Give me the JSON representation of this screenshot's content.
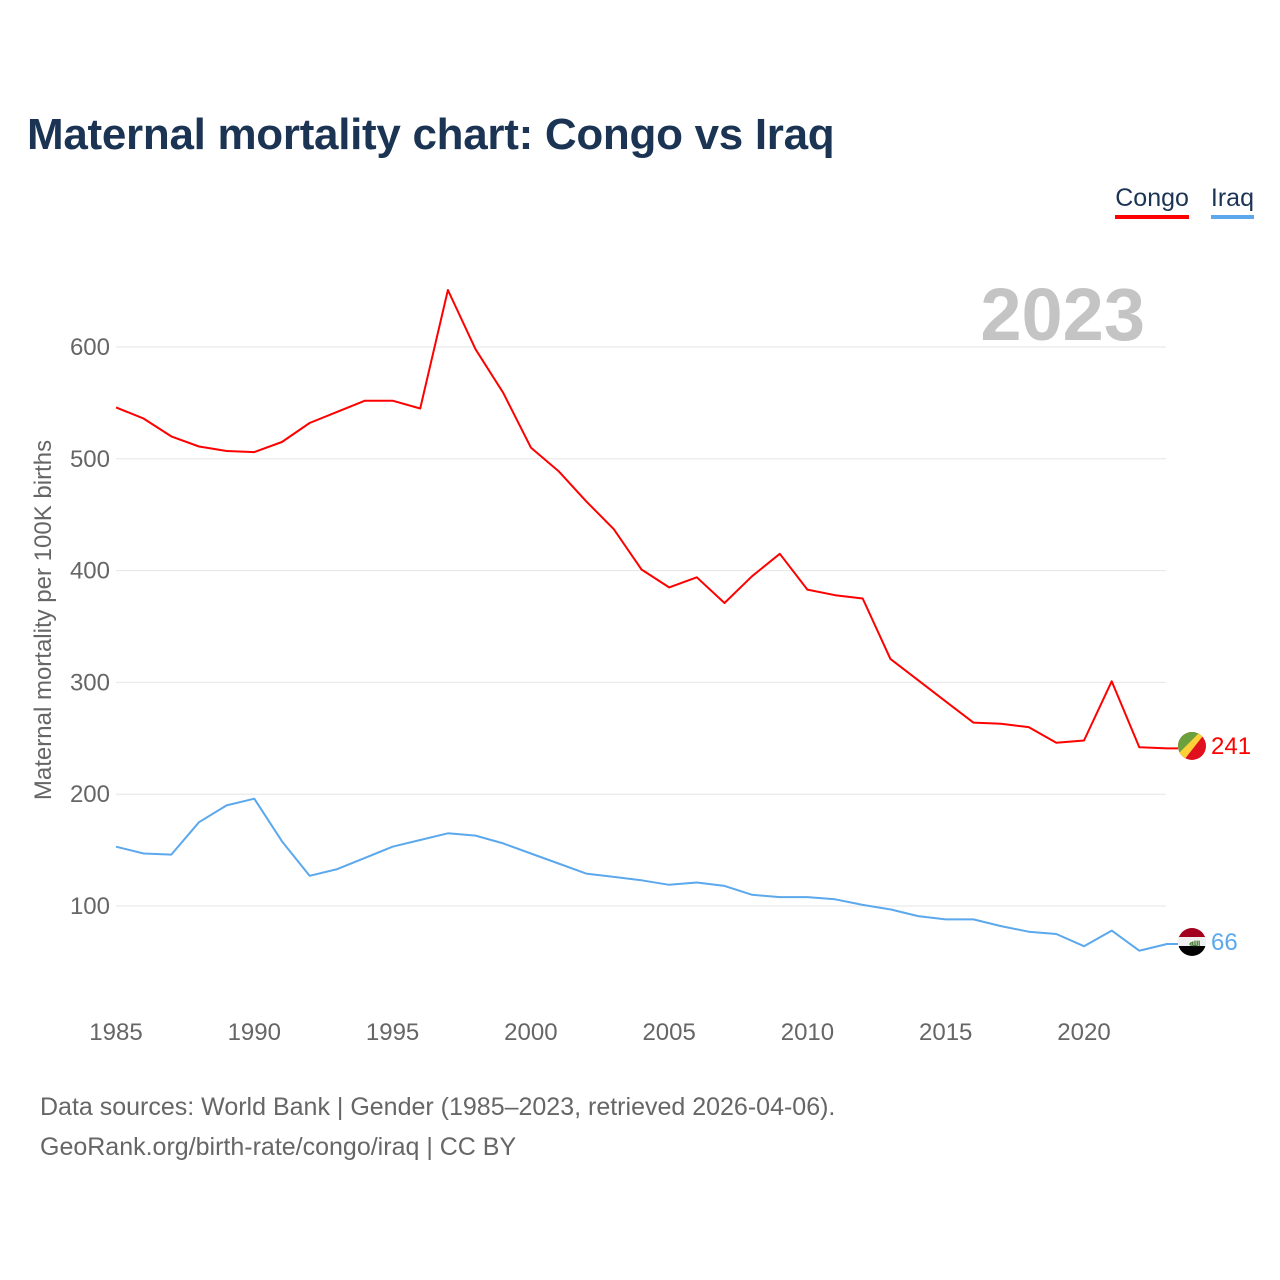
{
  "title": "Maternal mortality chart: Congo vs Iraq",
  "year_label": "2023",
  "footer": {
    "line1": "Data sources: World Bank | Gender (1985–2023, retrieved 2026-04-06).",
    "line2": "GeoRank.org/birth-rate/congo/iraq | CC BY"
  },
  "chart_data": {
    "type": "line",
    "title": "Maternal mortality chart: Congo vs Iraq",
    "xlabel": "",
    "ylabel": "Maternal mortality per 100K births",
    "xlim": [
      1985,
      2023
    ],
    "ylim": [
      0,
      650
    ],
    "xticks": [
      "1985",
      "1990",
      "1995",
      "2000",
      "2005",
      "2010",
      "2015",
      "2020"
    ],
    "yticks": [
      "100",
      "200",
      "300",
      "400",
      "500",
      "600"
    ],
    "grid": true,
    "legend_position": "top-right",
    "x": [
      1985,
      1986,
      1987,
      1988,
      1989,
      1990,
      1991,
      1992,
      1993,
      1994,
      1995,
      1996,
      1997,
      1998,
      1999,
      2000,
      2001,
      2002,
      2003,
      2004,
      2005,
      2006,
      2007,
      2008,
      2009,
      2010,
      2011,
      2012,
      2013,
      2014,
      2015,
      2016,
      2017,
      2018,
      2019,
      2020,
      2021,
      2022,
      2023
    ],
    "series": [
      {
        "name": "Congo",
        "color": "#ff0000",
        "end_label": "241",
        "flag": "congo-flag",
        "values": [
          546,
          536,
          520,
          511,
          507,
          506,
          515,
          532,
          542,
          552,
          552,
          545,
          651,
          598,
          559,
          510,
          489,
          462,
          437,
          401,
          385,
          394,
          371,
          395,
          415,
          383,
          378,
          375,
          321,
          302,
          283,
          264,
          263,
          260,
          246,
          248,
          301,
          242,
          241
        ]
      },
      {
        "name": "Iraq",
        "color": "#5ba8ec",
        "end_label": "66",
        "flag": "iraq-flag",
        "values": [
          153,
          147,
          146,
          175,
          190,
          196,
          158,
          127,
          133,
          143,
          153,
          159,
          165,
          163,
          156,
          147,
          138,
          129,
          126,
          123,
          119,
          121,
          118,
          110,
          108,
          108,
          106,
          101,
          97,
          91,
          88,
          88,
          82,
          77,
          75,
          64,
          78,
          60,
          66
        ]
      }
    ]
  }
}
